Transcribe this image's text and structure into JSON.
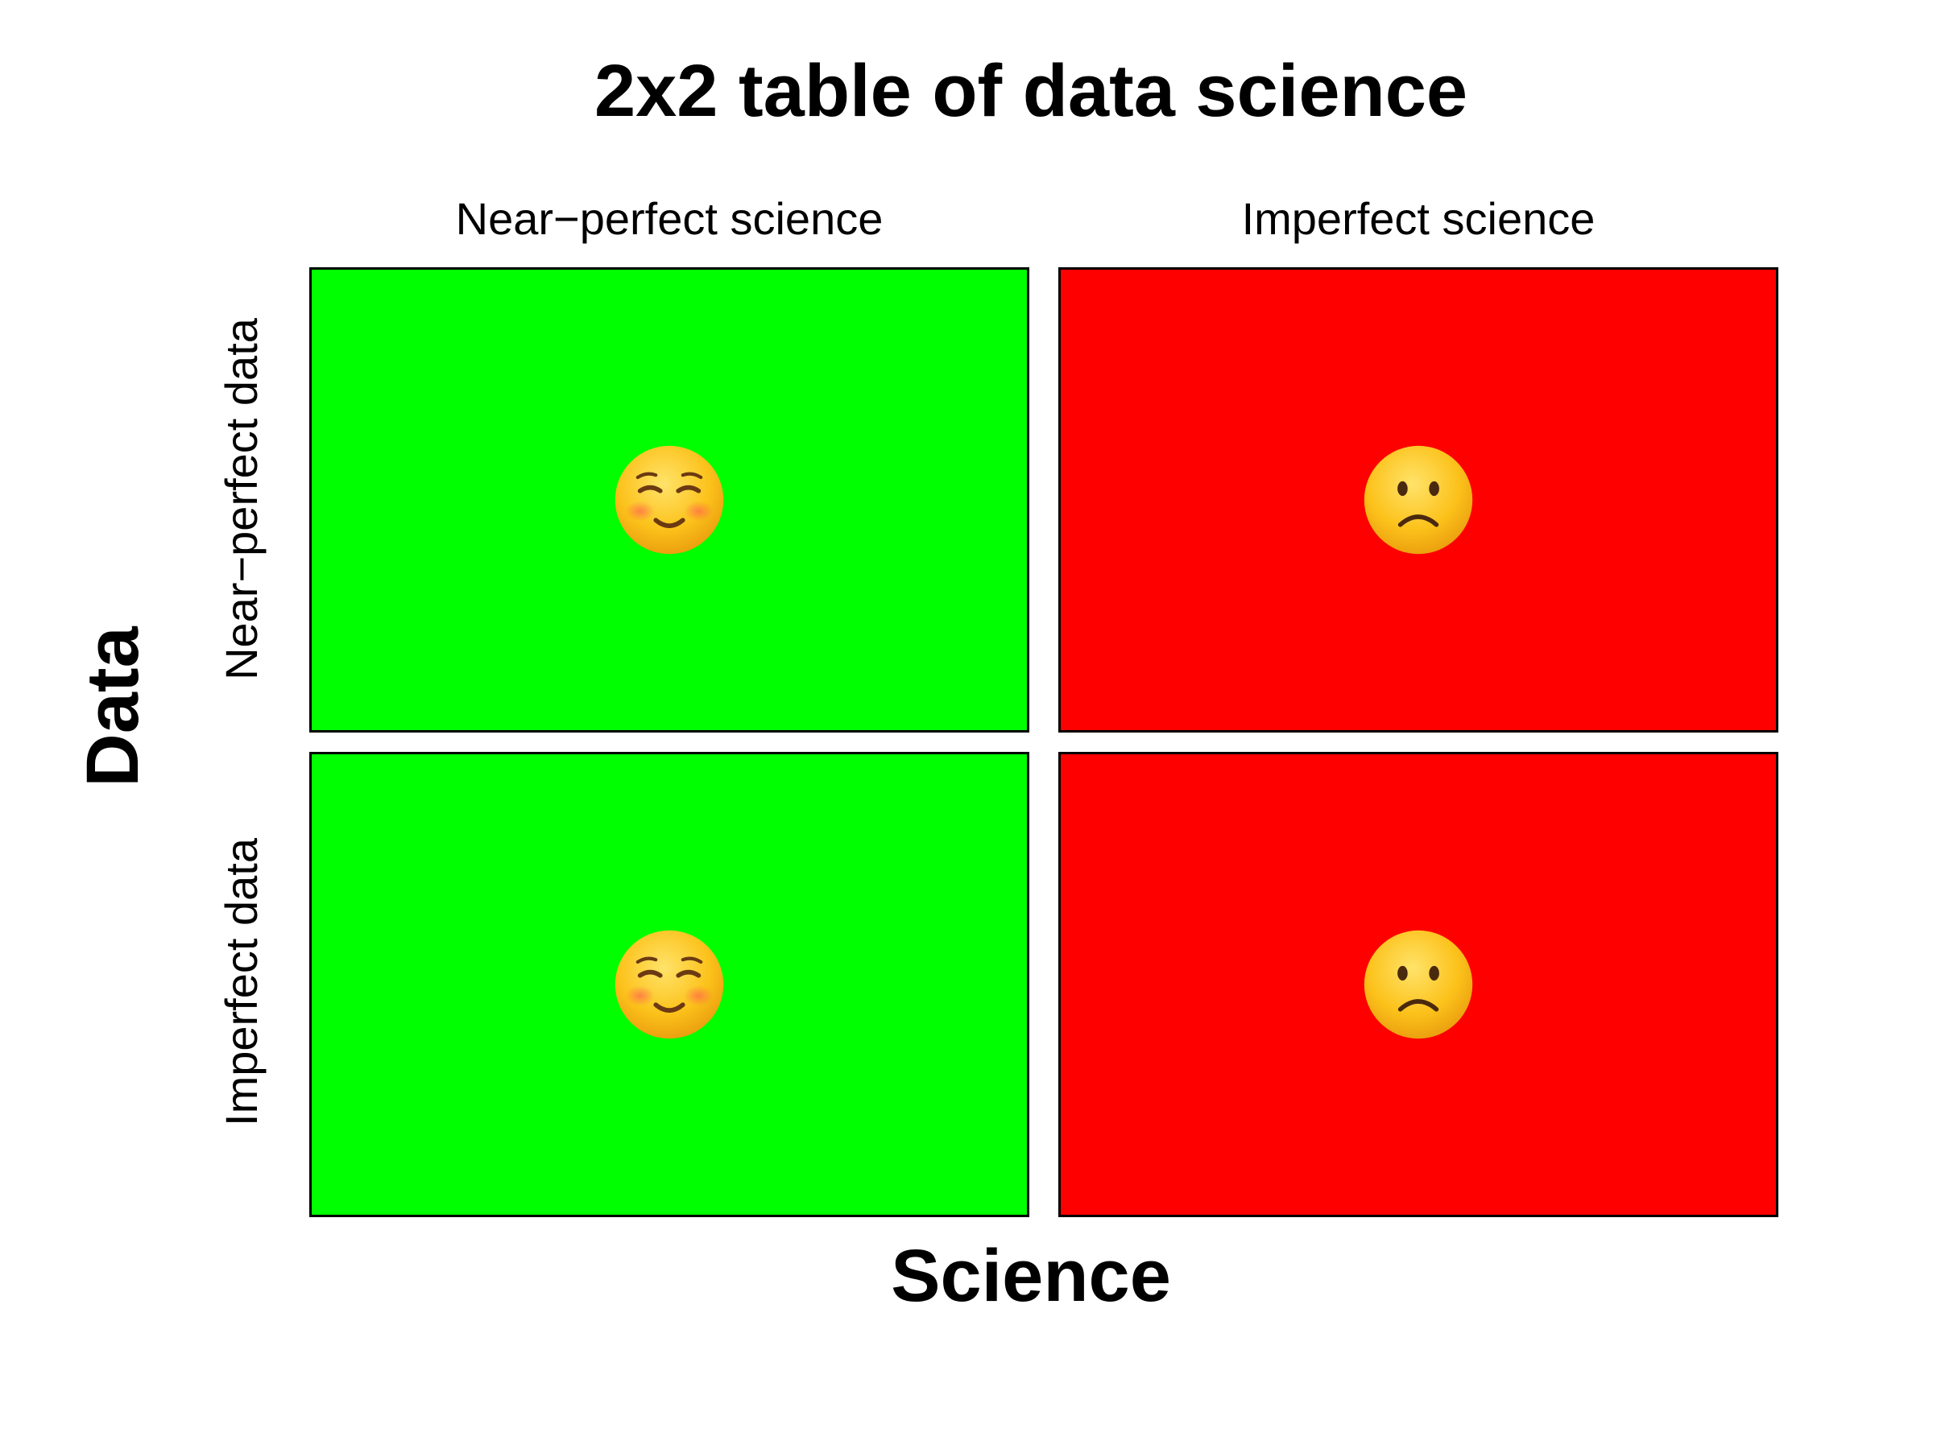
{
  "title": "2x2 table of data science",
  "x_axis": {
    "label": "Science",
    "columns": [
      "Near−perfect science",
      "Imperfect science"
    ]
  },
  "y_axis": {
    "label": "Data",
    "rows": [
      "Near−perfect data",
      "Imperfect data"
    ]
  },
  "cells": [
    {
      "science": "Near−perfect science",
      "data": "Near−perfect data",
      "color": "#00ff00",
      "icon": "smiling-face-icon"
    },
    {
      "science": "Imperfect science",
      "data": "Near−perfect data",
      "color": "#ff0000",
      "icon": "frowning-face-icon"
    },
    {
      "science": "Near−perfect science",
      "data": "Imperfect data",
      "color": "#00ff00",
      "icon": "smiling-face-icon"
    },
    {
      "science": "Imperfect science",
      "data": "Imperfect data",
      "color": "#ff0000",
      "icon": "frowning-face-icon"
    }
  ]
}
